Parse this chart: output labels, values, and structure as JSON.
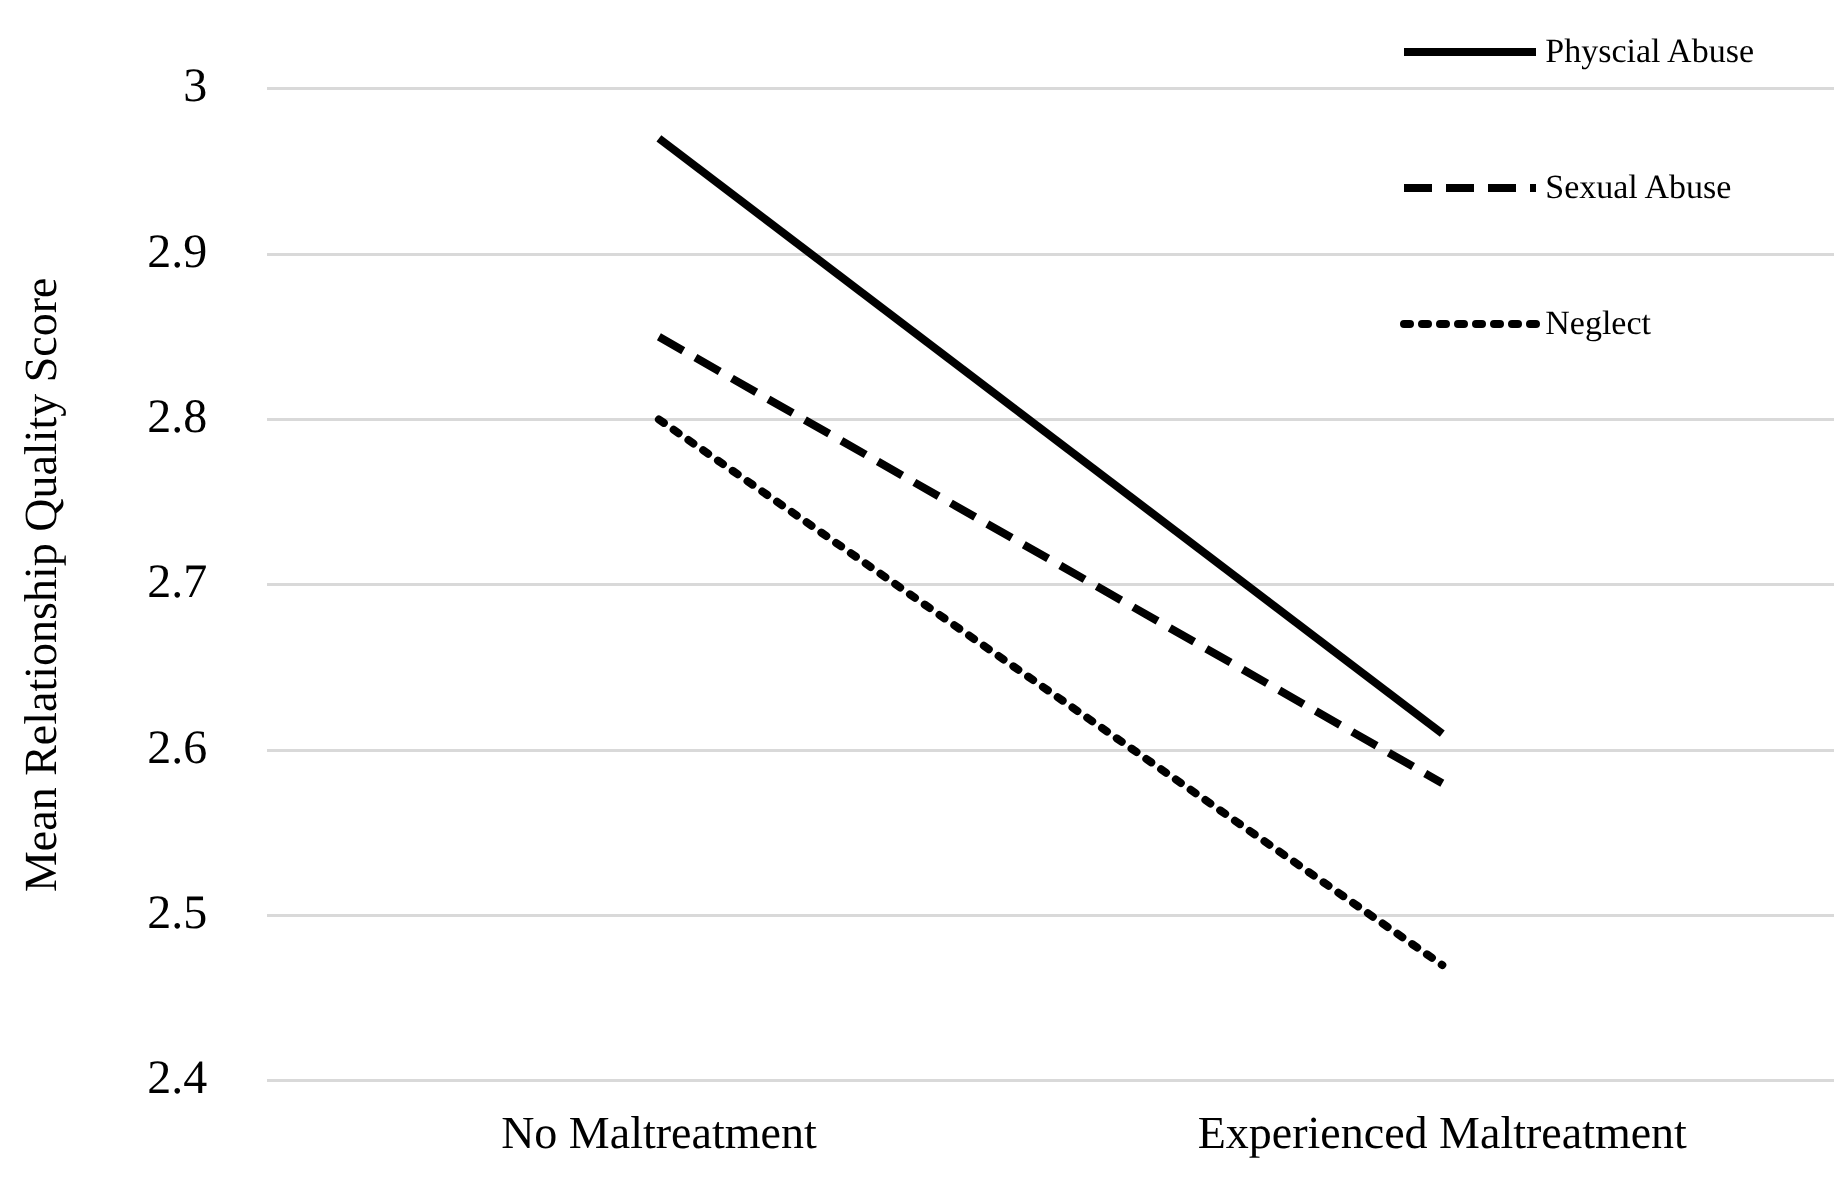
{
  "chart_data": {
    "type": "line",
    "ylabel": "Mean Relationship Quality Score",
    "categories": [
      "No Maltreatment",
      "Experienced Maltreatment"
    ],
    "series": [
      {
        "name": "Physcial Abuse",
        "color": "#000000",
        "values": [
          2.97,
          2.61
        ],
        "line_style": "solid"
      },
      {
        "name": "Sexual Abuse",
        "color": "#000000",
        "values": [
          2.85,
          2.58
        ],
        "line_style": "dashed"
      },
      {
        "name": "Neglect",
        "color": "#000000",
        "values": [
          2.8,
          2.47
        ],
        "line_style": "dotted"
      }
    ],
    "ylim": [
      2.4,
      3
    ],
    "yticks": [
      2.4,
      2.5,
      2.6,
      2.7,
      2.8,
      2.9,
      3
    ],
    "grid": "y",
    "legend": "top right",
    "marker": "none"
  }
}
